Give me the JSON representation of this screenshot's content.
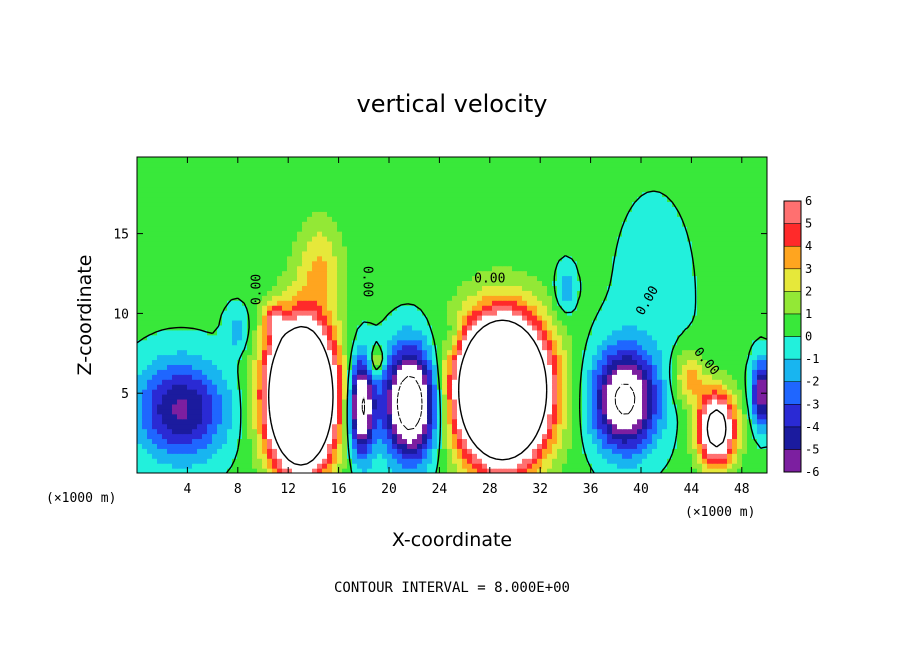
{
  "chart_data": {
    "type": "heatmap",
    "title": "vertical velocity",
    "xlabel": "X-coordinate",
    "ylabel": "Z-coordinate",
    "x_scale_note": "(×1000 m)",
    "x_scale_note_right": "(×1000 m)",
    "xlim": [
      0,
      50
    ],
    "ylim": [
      0,
      19.8
    ],
    "x_ticks": [
      4,
      8,
      12,
      16,
      20,
      24,
      28,
      32,
      36,
      40,
      44,
      48
    ],
    "y_ticks": [
      5,
      10,
      15
    ],
    "colorbar": {
      "ticks": [
        6,
        5,
        4,
        3,
        2,
        1,
        0,
        -1,
        -2,
        -3,
        -4,
        -5,
        -6
      ],
      "range": [
        -6,
        6
      ]
    },
    "contour_interval_text": "CONTOUR INTERVAL = 8.000E+00",
    "zero_contour_label": "0.00",
    "background_value": 0.3,
    "features": [
      {
        "x": 13.0,
        "z": 4.8,
        "rx": 2.5,
        "rz": 4.2,
        "w": 22
      },
      {
        "x": 29.0,
        "z": 5.2,
        "rx": 3.3,
        "rz": 4.1,
        "w": 24
      },
      {
        "x": 46.0,
        "z": 2.8,
        "rx": 1.5,
        "rz": 2.3,
        "w": 10
      },
      {
        "x": 43.8,
        "z": 6.0,
        "rx": 1.3,
        "rz": 1.6,
        "w": 3.2
      },
      {
        "x": 14.5,
        "z": 13.0,
        "rx": 1.8,
        "rz": 3.0,
        "w": 2.6
      },
      {
        "x": 10.8,
        "z": 9.6,
        "rx": 0.8,
        "rz": 1.0,
        "w": 3.5
      },
      {
        "x": 19.0,
        "z": 7.0,
        "rx": 0.6,
        "rz": 0.9,
        "w": 3.0
      },
      {
        "x": 3.5,
        "z": 4.0,
        "rx": 3.5,
        "rz": 3.0,
        "w": -5.5
      },
      {
        "x": 17.8,
        "z": 4.2,
        "rx": 1.0,
        "rz": 3.0,
        "w": -9
      },
      {
        "x": 21.7,
        "z": 4.4,
        "rx": 2.0,
        "rz": 3.3,
        "w": -11
      },
      {
        "x": 38.7,
        "z": 4.6,
        "rx": 2.4,
        "rz": 3.0,
        "w": -9
      },
      {
        "x": 49.6,
        "z": 5.0,
        "rx": 0.8,
        "rz": 2.0,
        "w": -6.5
      },
      {
        "x": 34.0,
        "z": 11.5,
        "rx": 0.8,
        "rz": 1.5,
        "w": -2.2
      },
      {
        "x": 8.0,
        "z": 9.0,
        "rx": 1.0,
        "rz": 1.5,
        "w": -1.8
      },
      {
        "x": 25.0,
        "z": 8.5,
        "rx": 0.8,
        "rz": 1.2,
        "w": -1.5
      },
      {
        "x": 41.0,
        "z": 11.0,
        "rx": 4.0,
        "rz": 8.0,
        "w": -0.6
      }
    ]
  }
}
